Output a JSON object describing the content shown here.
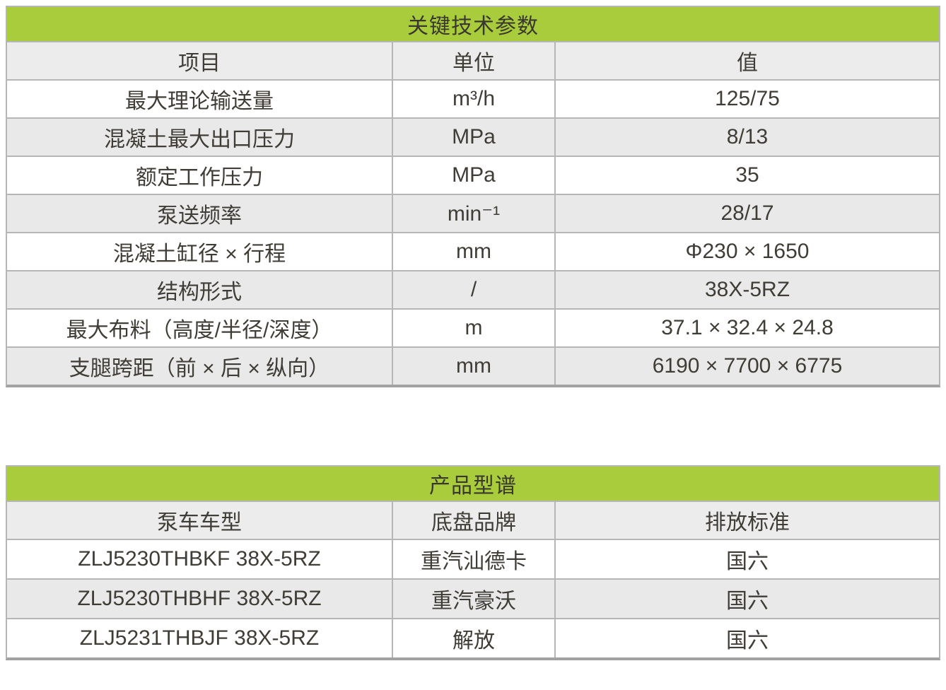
{
  "colors": {
    "header_green": "#a9cc3c",
    "title_text": "#3a382e",
    "cell_text": "#403c36",
    "column_header_bg": "#ececec",
    "row_alt_bg": "#e9e9e9",
    "grid_border": "#b6b6b6",
    "outer_bottom_border": "#a2a2a2",
    "page_background": "#ffffff"
  },
  "spec_table": {
    "title": "关键技术参数",
    "columns": {
      "item": "项目",
      "unit": "单位",
      "value": "值"
    },
    "rows": [
      {
        "item": "最大理论输送量",
        "unit": "m³/h",
        "value": "125/75"
      },
      {
        "item": "混凝土最大出口压力",
        "unit": "MPa",
        "value": "8/13"
      },
      {
        "item": "额定工作压力",
        "unit": "MPa",
        "value": "35"
      },
      {
        "item": "泵送频率",
        "unit": "min⁻¹",
        "value": "28/17"
      },
      {
        "item": "混凝土缸径 × 行程",
        "unit": "mm",
        "value": "Φ230 × 1650"
      },
      {
        "item": "结构形式",
        "unit": "/",
        "value": "38X-5RZ"
      },
      {
        "item": "最大布料（高度/半径/深度）",
        "unit": "m",
        "value": "37.1 × 32.4 × 24.8"
      },
      {
        "item": "支腿跨距（前 × 后 × 纵向）",
        "unit": "mm",
        "value": "6190 × 7700 × 6775"
      }
    ]
  },
  "product_table": {
    "title": "产品型谱",
    "columns": {
      "model": "泵车车型",
      "chassis": "底盘品牌",
      "emission": "排放标准"
    },
    "rows": [
      {
        "model": "ZLJ5230THBKF 38X-5RZ",
        "chassis": "重汽汕德卡",
        "emission": "国六"
      },
      {
        "model": "ZLJ5230THBHF 38X-5RZ",
        "chassis": "重汽豪沃",
        "emission": "国六"
      },
      {
        "model": "ZLJ5231THBJF 38X-5RZ",
        "chassis": "解放",
        "emission": "国六"
      }
    ]
  }
}
